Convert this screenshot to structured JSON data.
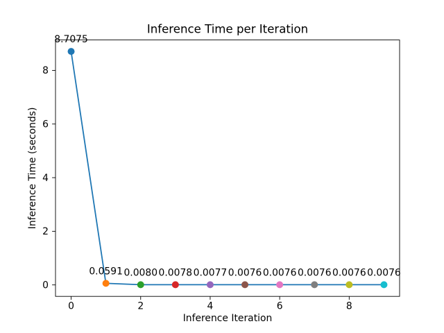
{
  "chart_data": {
    "type": "line",
    "title": "Inference Time per Iteration",
    "xlabel": "Inference Iteration",
    "ylabel": "Inference Time (seconds)",
    "x": [
      0,
      1,
      2,
      3,
      4,
      5,
      6,
      7,
      8,
      9
    ],
    "values": [
      8.7075,
      0.0591,
      0.008,
      0.0078,
      0.0077,
      0.0076,
      0.0076,
      0.0076,
      0.0076,
      0.0076
    ],
    "point_labels": [
      "8.7075",
      "0.0591",
      "0.0080",
      "0.0078",
      "0.0077",
      "0.0076",
      "0.0076",
      "0.0076",
      "0.0076",
      "0.0076"
    ],
    "point_colors": [
      "#1f77b4",
      "#ff7f0e",
      "#2ca02c",
      "#d62728",
      "#9467bd",
      "#8c564b",
      "#e377c2",
      "#7f7f7f",
      "#bcbd22",
      "#17becf"
    ],
    "line_color": "#1f77b4",
    "axis_color": "#000000",
    "background_color": "#ffffff",
    "x_ticks": [
      0,
      2,
      4,
      6,
      8
    ],
    "y_ticks": [
      0,
      2,
      4,
      6,
      8
    ],
    "xlim": [
      -0.45,
      9.45
    ],
    "ylim": [
      -0.4274,
      9.1349
    ],
    "grid": false,
    "legend": null
  }
}
